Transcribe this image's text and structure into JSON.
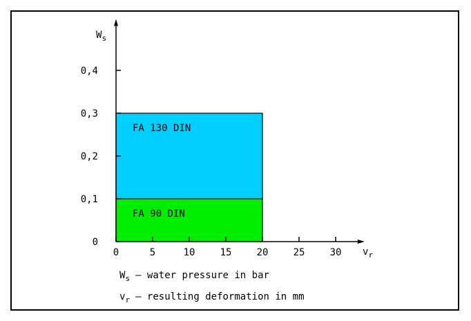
{
  "chart_data": {
    "type": "area",
    "title": "",
    "xlabel_main": "v",
    "xlabel_sub": "r",
    "ylabel_main": "W",
    "ylabel_sub": "s",
    "xlim": [
      0,
      33
    ],
    "ylim": [
      0,
      0.42
    ],
    "x_ticks": [
      {
        "value": 0,
        "label": "0"
      },
      {
        "value": 5,
        "label": "5"
      },
      {
        "value": 10,
        "label": "10"
      },
      {
        "value": 15,
        "label": "15"
      },
      {
        "value": 20,
        "label": "20"
      },
      {
        "value": 25,
        "label": "25"
      },
      {
        "value": 30,
        "label": "30"
      }
    ],
    "y_ticks": [
      {
        "value": 0,
        "label": "0"
      },
      {
        "value": 0.1,
        "label": "0,1"
      },
      {
        "value": 0.2,
        "label": "0,2"
      },
      {
        "value": 0.3,
        "label": "0,3"
      },
      {
        "value": 0.4,
        "label": "0,4"
      }
    ],
    "regions": [
      {
        "name": "FA 130 DIN",
        "x0": 0,
        "x1": 20,
        "y0": 0.1,
        "y1": 0.3,
        "color": "#00cfff"
      },
      {
        "name": "FA 90 DIN",
        "x0": 0,
        "x1": 20,
        "y0": 0,
        "y1": 0.1,
        "color": "#00ee00"
      }
    ],
    "legend": [
      {
        "symbol_main": "W",
        "symbol_sub": "s",
        "text": "– water pressure in bar"
      },
      {
        "symbol_main": "v",
        "symbol_sub": "r",
        "text": "– resulting deformation in mm"
      }
    ]
  }
}
